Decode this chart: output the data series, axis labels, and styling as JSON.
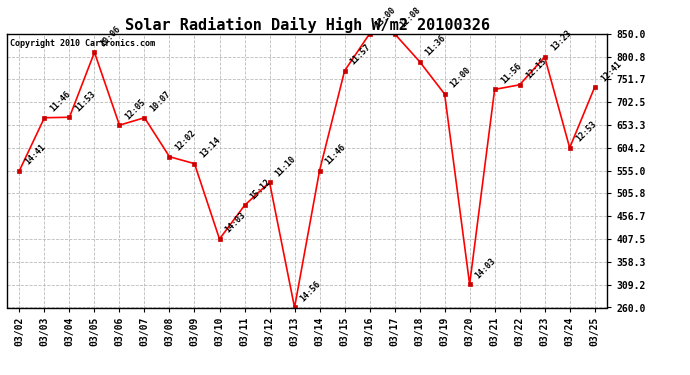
{
  "title": "Solar Radiation Daily High W/m2 20100326",
  "copyright": "Copyright 2010 Cartronics.com",
  "dates": [
    "03/02",
    "03/03",
    "03/04",
    "03/05",
    "03/06",
    "03/07",
    "03/08",
    "03/09",
    "03/10",
    "03/11",
    "03/12",
    "03/13",
    "03/14",
    "03/15",
    "03/16",
    "03/17",
    "03/18",
    "03/19",
    "03/20",
    "03/21",
    "03/22",
    "03/23",
    "03/24",
    "03/25"
  ],
  "values": [
    555.0,
    669.0,
    670.0,
    810.0,
    653.0,
    669.0,
    585.0,
    570.0,
    407.5,
    480.0,
    530.0,
    260.0,
    555.0,
    770.0,
    850.0,
    850.0,
    790.0,
    720.0,
    310.0,
    730.0,
    740.0,
    800.0,
    604.2,
    735.0
  ],
  "time_labels": [
    "14:41",
    "11:46",
    "11:53",
    "10:06",
    "12:05",
    "10:07",
    "12:02",
    "13:14",
    "14:03",
    "15:12",
    "11:10",
    "14:56",
    "11:46",
    "11:57",
    "13:00",
    "12:08",
    "11:36",
    "12:00",
    "14:03",
    "11:56",
    "12:15",
    "13:23",
    "12:53",
    "12:41"
  ],
  "ylim_min": 260.0,
  "ylim_max": 850.0,
  "yticks": [
    260.0,
    309.2,
    358.3,
    407.5,
    456.7,
    505.8,
    555.0,
    604.2,
    653.3,
    702.5,
    751.7,
    800.8,
    850.0
  ],
  "line_color": "#ff0000",
  "marker_color": "#cc0000",
  "bg_color": "#ffffff",
  "grid_color": "#bbbbbb",
  "title_fontsize": 11,
  "annotation_fontsize": 6,
  "tick_fontsize": 7
}
